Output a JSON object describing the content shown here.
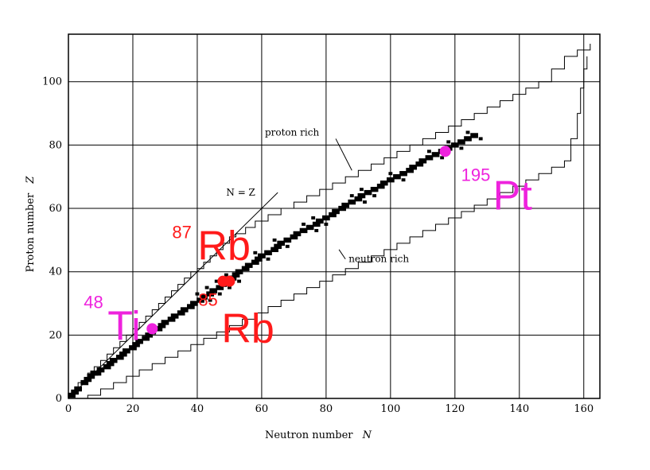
{
  "chart_data": {
    "type": "scatter",
    "title": "",
    "xlabel": "Neutron number",
    "xlabel_var": "N",
    "ylabel": "Proton number",
    "ylabel_var": "Z",
    "xlim": [
      0,
      165
    ],
    "ylim": [
      0,
      115
    ],
    "xticks": [
      0,
      20,
      40,
      60,
      80,
      100,
      120,
      140,
      160
    ],
    "yticks": [
      0,
      20,
      40,
      60,
      80,
      100
    ],
    "grid": true,
    "line_label": "N = Z",
    "annotations": {
      "proton_rich": "proton rich",
      "neutron_rich": "neutron rich"
    },
    "colors": {
      "red": "#ff1a1a",
      "magenta": "#ee22dd",
      "axis": "#000000"
    },
    "stable_band": [
      [
        1,
        1
      ],
      [
        2,
        2
      ],
      [
        3,
        3
      ],
      [
        5,
        5
      ],
      [
        6,
        6
      ],
      [
        7,
        7
      ],
      [
        8,
        8
      ],
      [
        9,
        8
      ],
      [
        10,
        9
      ],
      [
        12,
        10
      ],
      [
        13,
        11
      ],
      [
        14,
        12
      ],
      [
        16,
        13
      ],
      [
        17,
        14
      ],
      [
        18,
        15
      ],
      [
        20,
        16
      ],
      [
        21,
        17
      ],
      [
        22,
        18
      ],
      [
        24,
        19
      ],
      [
        25,
        20
      ],
      [
        26,
        21
      ],
      [
        28,
        22
      ],
      [
        29,
        23
      ],
      [
        30,
        24
      ],
      [
        32,
        25
      ],
      [
        33,
        26
      ],
      [
        35,
        27
      ],
      [
        36,
        28
      ],
      [
        38,
        29
      ],
      [
        39,
        30
      ],
      [
        41,
        31
      ],
      [
        42,
        32
      ],
      [
        44,
        33
      ],
      [
        45,
        34
      ],
      [
        47,
        35
      ],
      [
        48,
        36
      ],
      [
        50,
        37
      ],
      [
        51,
        38
      ],
      [
        52,
        39
      ],
      [
        53,
        40
      ],
      [
        55,
        41
      ],
      [
        56,
        42
      ],
      [
        58,
        43
      ],
      [
        59,
        44
      ],
      [
        60,
        45
      ],
      [
        62,
        46
      ],
      [
        64,
        47
      ],
      [
        65,
        48
      ],
      [
        66,
        49
      ],
      [
        68,
        50
      ],
      [
        70,
        51
      ],
      [
        71,
        52
      ],
      [
        73,
        53
      ],
      [
        75,
        54
      ],
      [
        77,
        55
      ],
      [
        78,
        56
      ],
      [
        80,
        57
      ],
      [
        82,
        58
      ],
      [
        83,
        59
      ],
      [
        85,
        60
      ],
      [
        86,
        61
      ],
      [
        88,
        62
      ],
      [
        90,
        63
      ],
      [
        91,
        64
      ],
      [
        93,
        65
      ],
      [
        95,
        66
      ],
      [
        97,
        67
      ],
      [
        98,
        68
      ],
      [
        100,
        69
      ],
      [
        102,
        70
      ],
      [
        104,
        71
      ],
      [
        106,
        72
      ],
      [
        107,
        73
      ],
      [
        109,
        74
      ],
      [
        110,
        75
      ],
      [
        112,
        76
      ],
      [
        114,
        77
      ],
      [
        116,
        78
      ],
      [
        118,
        79
      ],
      [
        120,
        80
      ],
      [
        122,
        81
      ],
      [
        124,
        82
      ],
      [
        126,
        83
      ]
    ],
    "proton_drip_line": [
      [
        0,
        1
      ],
      [
        2,
        3
      ],
      [
        3,
        5
      ],
      [
        5,
        6
      ],
      [
        6,
        8
      ],
      [
        8,
        10
      ],
      [
        10,
        12
      ],
      [
        12,
        14
      ],
      [
        14,
        16
      ],
      [
        16,
        18
      ],
      [
        18,
        20
      ],
      [
        20,
        22
      ],
      [
        22,
        24
      ],
      [
        24,
        26
      ],
      [
        26,
        28
      ],
      [
        28,
        30
      ],
      [
        30,
        32
      ],
      [
        32,
        34
      ],
      [
        34,
        36
      ],
      [
        36,
        38
      ],
      [
        38,
        40
      ],
      [
        40,
        41
      ],
      [
        42,
        43
      ],
      [
        44,
        45
      ],
      [
        46,
        47
      ],
      [
        48,
        49
      ],
      [
        50,
        51
      ],
      [
        52,
        52
      ],
      [
        55,
        54
      ],
      [
        58,
        56
      ],
      [
        62,
        58
      ],
      [
        66,
        60
      ],
      [
        70,
        62
      ],
      [
        74,
        64
      ],
      [
        78,
        66
      ],
      [
        82,
        68
      ],
      [
        86,
        70
      ],
      [
        90,
        72
      ],
      [
        94,
        74
      ],
      [
        98,
        76
      ],
      [
        102,
        78
      ],
      [
        106,
        80
      ],
      [
        110,
        82
      ],
      [
        114,
        84
      ],
      [
        118,
        86
      ],
      [
        122,
        88
      ],
      [
        126,
        90
      ],
      [
        130,
        92
      ],
      [
        134,
        94
      ],
      [
        138,
        96
      ],
      [
        142,
        98
      ],
      [
        146,
        100
      ],
      [
        150,
        104
      ],
      [
        154,
        108
      ],
      [
        158,
        110
      ],
      [
        162,
        112
      ]
    ],
    "neutron_drip_line": [
      [
        2,
        0
      ],
      [
        6,
        1
      ],
      [
        10,
        3
      ],
      [
        14,
        5
      ],
      [
        18,
        7
      ],
      [
        22,
        9
      ],
      [
        26,
        11
      ],
      [
        30,
        13
      ],
      [
        34,
        15
      ],
      [
        38,
        17
      ],
      [
        42,
        19
      ],
      [
        46,
        21
      ],
      [
        50,
        23
      ],
      [
        54,
        25
      ],
      [
        58,
        27
      ],
      [
        62,
        29
      ],
      [
        66,
        31
      ],
      [
        70,
        33
      ],
      [
        74,
        35
      ],
      [
        78,
        37
      ],
      [
        82,
        39
      ],
      [
        86,
        41
      ],
      [
        90,
        43
      ],
      [
        94,
        45
      ],
      [
        98,
        47
      ],
      [
        102,
        49
      ],
      [
        106,
        51
      ],
      [
        110,
        53
      ],
      [
        114,
        55
      ],
      [
        118,
        57
      ],
      [
        122,
        59
      ],
      [
        126,
        61
      ],
      [
        130,
        63
      ],
      [
        134,
        65
      ],
      [
        138,
        67
      ],
      [
        142,
        69
      ],
      [
        146,
        71
      ],
      [
        150,
        73
      ],
      [
        154,
        75
      ],
      [
        156,
        82
      ],
      [
        158,
        90
      ],
      [
        159,
        98
      ],
      [
        160,
        104
      ],
      [
        161,
        108
      ]
    ],
    "series": [
      {
        "name": "Ti",
        "mass": "48",
        "N": 26,
        "Z": 22,
        "color": "#ee22dd"
      },
      {
        "name": "Rb",
        "mass": "87",
        "N": 50,
        "Z": 37,
        "color": "#ff1a1a"
      },
      {
        "name": "Rb",
        "mass": "85",
        "N": 48,
        "Z": 37,
        "color": "#ff1a1a"
      },
      {
        "name": "Pt",
        "mass": "195",
        "N": 117,
        "Z": 78,
        "color": "#ee22dd"
      }
    ]
  }
}
